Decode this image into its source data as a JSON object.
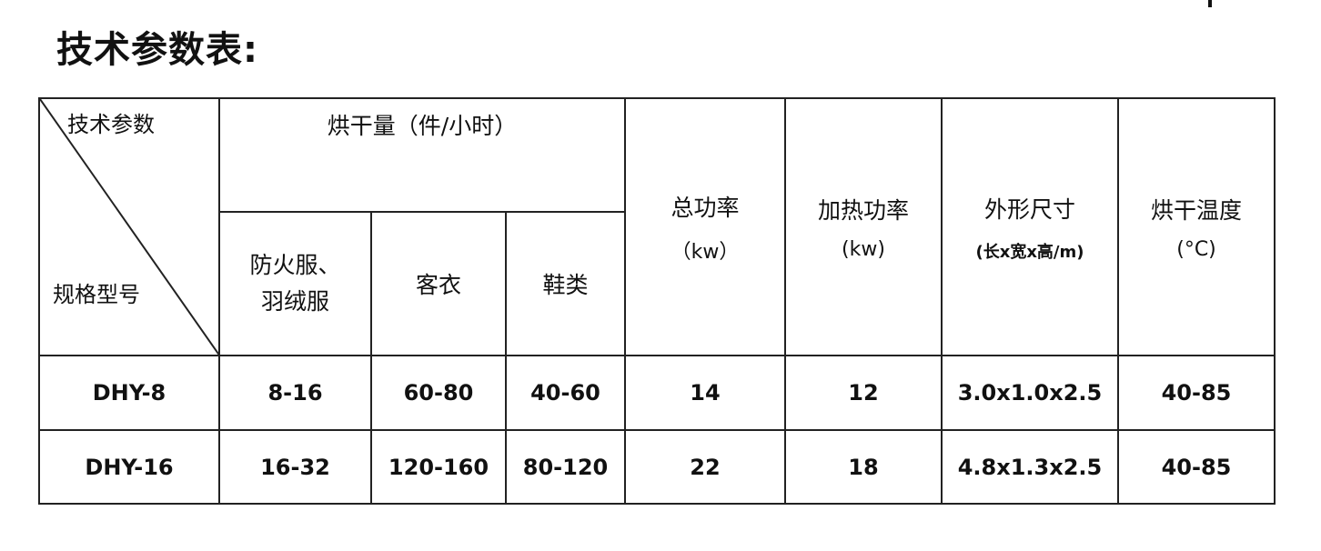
{
  "title": "技术参数表:",
  "table": {
    "corner_top": "技术参数",
    "corner_bottom": "规格型号",
    "capacity_header": "烘干量（件/小时）",
    "capacity_sub": [
      "防火服、羽绒服",
      "客衣",
      "鞋类"
    ],
    "total_power": {
      "label": "总功率",
      "unit": "（kw）"
    },
    "heating_power": {
      "label": "加热功率",
      "unit": "(kw)"
    },
    "dimensions": {
      "label": "外形尺寸",
      "unit": "(长x宽x高/m)"
    },
    "dry_temp": {
      "label": "烘干温度",
      "unit": "(°C)"
    },
    "rows": [
      [
        "DHY-8",
        "8-16",
        "60-80",
        "40-60",
        "14",
        "12",
        "3.0x1.0x2.5",
        "40-85"
      ],
      [
        "DHY-16",
        "16-32",
        "120-160",
        "80-120",
        "22",
        "18",
        "4.8x1.3x2.5",
        "40-85"
      ]
    ]
  }
}
